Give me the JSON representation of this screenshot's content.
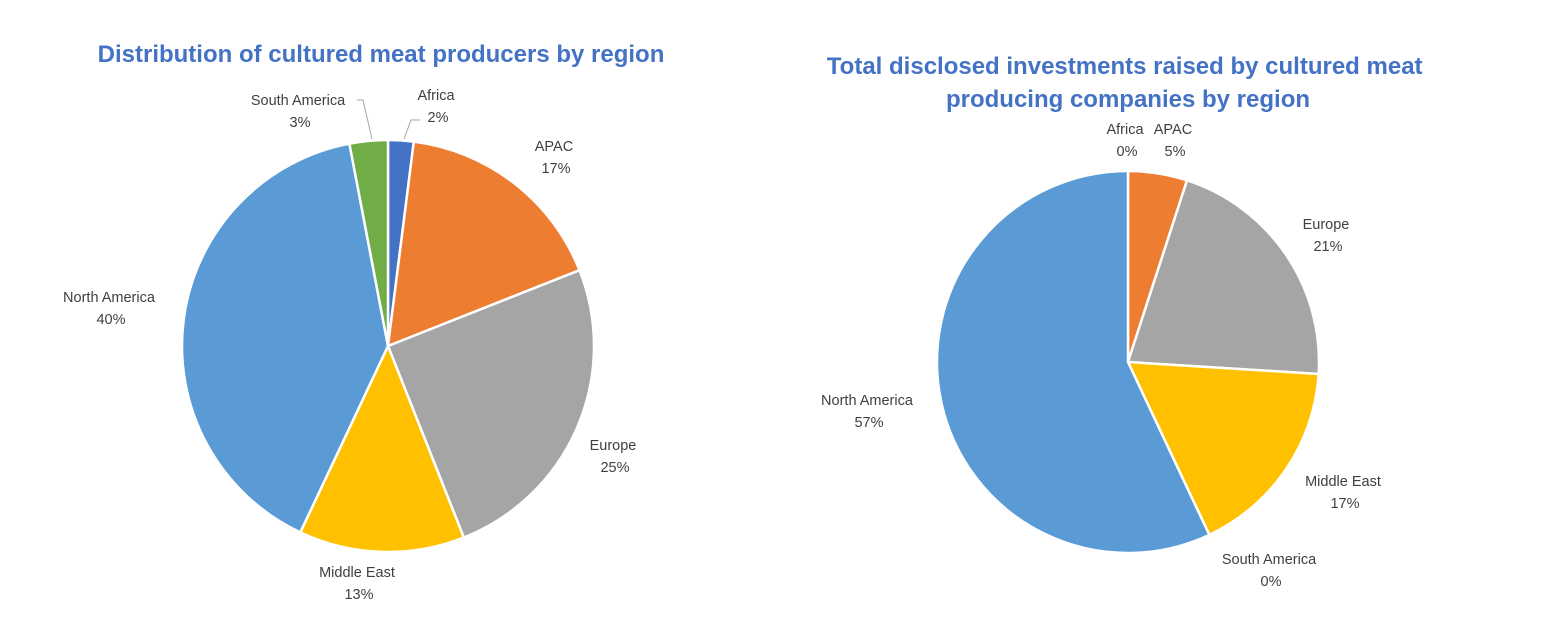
{
  "chart_data": [
    {
      "type": "pie",
      "title": "Distribution of cultured meat producers by region",
      "slices": [
        {
          "label": "Africa",
          "value": 2,
          "value_label": "2%",
          "color": "#4472c4"
        },
        {
          "label": "APAC",
          "value": 17,
          "value_label": "17%",
          "color": "#ed7d31"
        },
        {
          "label": "Europe",
          "value": 25,
          "value_label": "25%",
          "color": "#a5a5a5"
        },
        {
          "label": "Middle East",
          "value": 13,
          "value_label": "13%",
          "color": "#ffc000"
        },
        {
          "label": "North America",
          "value": 40,
          "value_label": "40%",
          "color": "#5b9bd5"
        },
        {
          "label": "South America",
          "value": 3,
          "value_label": "3%",
          "color": "#70ad47"
        }
      ]
    },
    {
      "type": "pie",
      "title": "Total disclosed investments raised by cultured meat producing companies by region",
      "title_lines": [
        "Total disclosed investments raised by cultured meat",
        "producing companies by region"
      ],
      "slices": [
        {
          "label": "Africa",
          "value": 0,
          "value_label": "0%",
          "color": "#4472c4"
        },
        {
          "label": "APAC",
          "value": 5,
          "value_label": "5%",
          "color": "#ed7d31"
        },
        {
          "label": "Europe",
          "value": 21,
          "value_label": "21%",
          "color": "#a5a5a5"
        },
        {
          "label": "Middle East",
          "value": 17,
          "value_label": "17%",
          "color": "#ffc000"
        },
        {
          "label": "North America",
          "value": 57,
          "value_label": "57%",
          "color": "#5b9bd5"
        },
        {
          "label": "South America",
          "value": 0,
          "value_label": "0%",
          "color": "#70ad47"
        }
      ]
    }
  ]
}
